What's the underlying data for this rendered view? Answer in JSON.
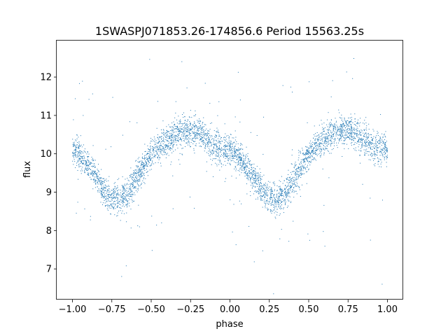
{
  "chart_data": {
    "type": "scatter",
    "title": "1SWASPJ071853.26-174856.6 Period 15563.25s",
    "xlabel": "phase",
    "ylabel": "flux",
    "xlim": [
      -1.1,
      1.1
    ],
    "ylim": [
      6.2,
      12.95
    ],
    "xticks": [
      -1.0,
      -0.75,
      -0.5,
      -0.25,
      0.0,
      0.25,
      0.5,
      0.75,
      1.0
    ],
    "xtick_labels": [
      "−1.00",
      "−0.75",
      "−0.50",
      "−0.25",
      "0.00",
      "0.25",
      "0.50",
      "0.75",
      "1.00"
    ],
    "yticks": [
      7,
      8,
      9,
      10,
      11,
      12
    ],
    "ytick_labels": [
      "7",
      "8",
      "9",
      "10",
      "11",
      "12"
    ],
    "grid": false,
    "marker_color": "#1f77b4",
    "series": [
      {
        "x": [
          -1.0,
          -0.95,
          -0.9,
          -0.85,
          -0.8,
          -0.75,
          -0.7,
          -0.65,
          -0.6,
          -0.55,
          -0.5,
          -0.45,
          -0.4,
          -0.35,
          -0.3,
          -0.25,
          -0.2,
          -0.15,
          -0.1,
          -0.05,
          0.0,
          0.05,
          0.1,
          0.15,
          0.2,
          0.25,
          0.3,
          0.35,
          0.4,
          0.45,
          0.5,
          0.55,
          0.6,
          0.65,
          0.7,
          0.75,
          0.8,
          0.85,
          0.9,
          0.95,
          1.0
        ],
        "values": [
          10.15,
          9.95,
          9.65,
          9.4,
          9.05,
          8.85,
          8.8,
          8.95,
          9.3,
          9.65,
          10.0,
          10.2,
          10.35,
          10.5,
          10.6,
          10.6,
          10.55,
          10.4,
          10.2,
          10.1,
          10.15,
          9.95,
          9.65,
          9.4,
          9.05,
          8.85,
          8.8,
          8.95,
          9.3,
          9.65,
          10.0,
          10.2,
          10.35,
          10.5,
          10.6,
          10.6,
          10.55,
          10.4,
          10.2,
          10.1,
          10.15
        ]
      }
    ]
  }
}
